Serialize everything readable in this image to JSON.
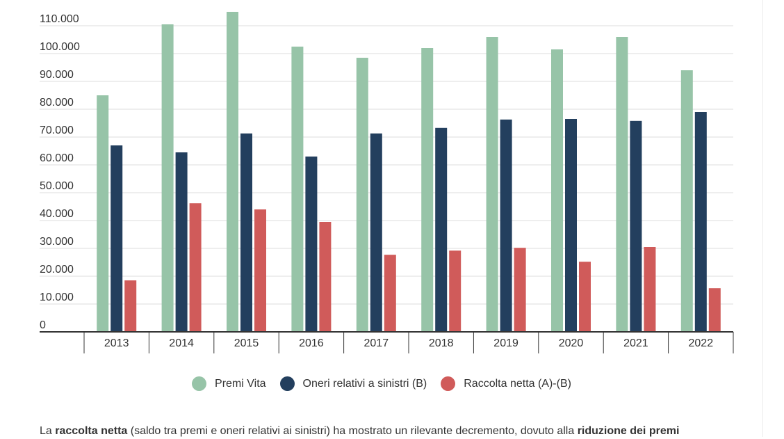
{
  "chart_data": {
    "type": "bar",
    "categories": [
      "2013",
      "2014",
      "2015",
      "2016",
      "2017",
      "2018",
      "2019",
      "2020",
      "2021",
      "2022"
    ],
    "series": [
      {
        "name": "Premi Vita",
        "color": "#97c4a8",
        "values": [
          85000,
          110500,
          115000,
          102500,
          98500,
          102000,
          106000,
          101500,
          106000,
          94000
        ]
      },
      {
        "name": "Oneri relativi a sinistri (B)",
        "color": "#233f5e",
        "values": [
          67000,
          64500,
          71300,
          63000,
          71300,
          73300,
          76300,
          76500,
          75800,
          79000
        ]
      },
      {
        "name": "Raccolta netta (A)-(B)",
        "color": "#d05b5a",
        "values": [
          18500,
          46200,
          44000,
          39500,
          27700,
          29200,
          30200,
          25200,
          30500,
          15700
        ]
      }
    ],
    "yticks": [
      "0",
      "10.000",
      "20.000",
      "30.000",
      "40.000",
      "50.000",
      "60.000",
      "70.000",
      "80.000",
      "90.000",
      "100.000",
      "110.000"
    ],
    "ylim": [
      0,
      115000
    ],
    "grid": true,
    "legend": "bottom"
  },
  "caption": {
    "part1": "La ",
    "bold1": "raccolta netta",
    "part2": " (saldo tra premi e oneri relativi ai sinistri) ha mostrato un rilevante decremento, dovuto alla ",
    "bold2": "riduzione dei premi"
  }
}
